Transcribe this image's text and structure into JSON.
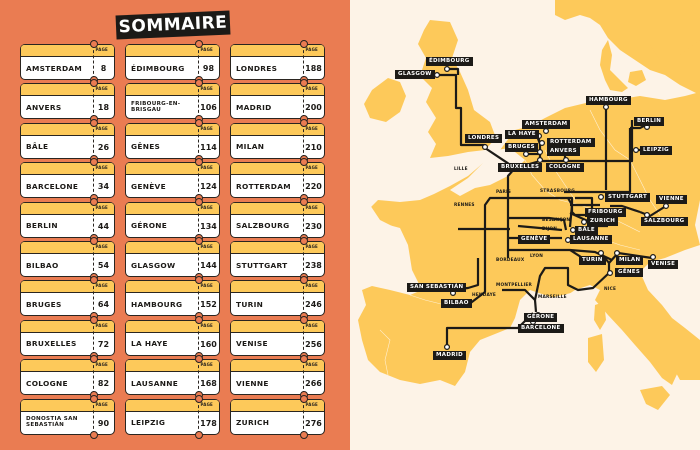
{
  "toc": {
    "title": "SOMMAIRE",
    "page_label": "PAGE",
    "entries": [
      {
        "name": "AMSTERDAM",
        "page": "8"
      },
      {
        "name": "ÉDIMBOURG",
        "page": "98"
      },
      {
        "name": "LONDRES",
        "page": "188"
      },
      {
        "name": "ANVERS",
        "page": "18"
      },
      {
        "name": "FRIBOURG-EN-BRISGAU",
        "page": "106"
      },
      {
        "name": "MADRID",
        "page": "200"
      },
      {
        "name": "BÂLE",
        "page": "26"
      },
      {
        "name": "GÊNES",
        "page": "114"
      },
      {
        "name": "MILAN",
        "page": "210"
      },
      {
        "name": "BARCELONE",
        "page": "34"
      },
      {
        "name": "GENÈVE",
        "page": "124"
      },
      {
        "name": "ROTTERDAM",
        "page": "220"
      },
      {
        "name": "BERLIN",
        "page": "44"
      },
      {
        "name": "GÉRONE",
        "page": "134"
      },
      {
        "name": "SALZBOURG",
        "page": "230"
      },
      {
        "name": "BILBAO",
        "page": "54"
      },
      {
        "name": "GLASGOW",
        "page": "144"
      },
      {
        "name": "STUTTGART",
        "page": "238"
      },
      {
        "name": "BRUGES",
        "page": "64"
      },
      {
        "name": "HAMBOURG",
        "page": "152"
      },
      {
        "name": "TURIN",
        "page": "246"
      },
      {
        "name": "BRUXELLES",
        "page": "72"
      },
      {
        "name": "LA HAYE",
        "page": "160"
      },
      {
        "name": "VENISE",
        "page": "256"
      },
      {
        "name": "COLOGNE",
        "page": "82"
      },
      {
        "name": "LAUSANNE",
        "page": "168"
      },
      {
        "name": "VIENNE",
        "page": "266"
      },
      {
        "name": "DONOSTIA SAN SEBASTIÁN",
        "page": "90"
      },
      {
        "name": "LEIPZIG",
        "page": "178"
      },
      {
        "name": "ZURICH",
        "page": "276"
      }
    ]
  },
  "map": {
    "colors": {
      "land": "#fdc95a",
      "sea": "#fdf3e7",
      "rail": "#1c1a17",
      "accent": "#ea7c52"
    },
    "city_labels": {
      "edimbourg": "ÉDIMBOURG",
      "glasgow": "GLASGOW",
      "londres": "LONDRES",
      "amsterdam": "AMSTERDAM",
      "lahaye": "LA HAYE",
      "rotterdam": "ROTTERDAM",
      "bruges": "BRUGES",
      "anvers": "ANVERS",
      "bruxelles": "BRUXELLES",
      "cologne": "COLOGNE",
      "hambourg": "HAMBOURG",
      "berlin": "BERLIN",
      "leipzig": "LEIPZIG",
      "stuttgart": "STUTTGART",
      "fribourg": "FRIBOURG",
      "zurich": "ZURICH",
      "bale": "BÂLE",
      "geneve": "GENÈVE",
      "lausanne": "LAUSANNE",
      "vienne": "VIENNE",
      "salzbourg": "SALZBOURG",
      "turin": "TURIN",
      "milan": "MILAN",
      "venise": "VENISE",
      "genes": "GÊNES",
      "sansebastian": "SAN SEBASTIÁN",
      "bilbao": "BILBAO",
      "gerone": "GÉRONE",
      "barcelone": "BARCELONE",
      "madrid": "MADRID"
    },
    "stop_labels": {
      "lille": "LILLE",
      "paris": "PARIS",
      "strasbourg": "STRASBOURG",
      "rennes": "RENNES",
      "besancon": "BESANÇON",
      "dijon": "DIJON",
      "lyon": "LYON",
      "bordeaux": "BORDEAUX",
      "montpellier": "MONTPELLIER",
      "marseille": "MARSEILLE",
      "nice": "NICE",
      "hendaye": "HENDAYE"
    }
  }
}
